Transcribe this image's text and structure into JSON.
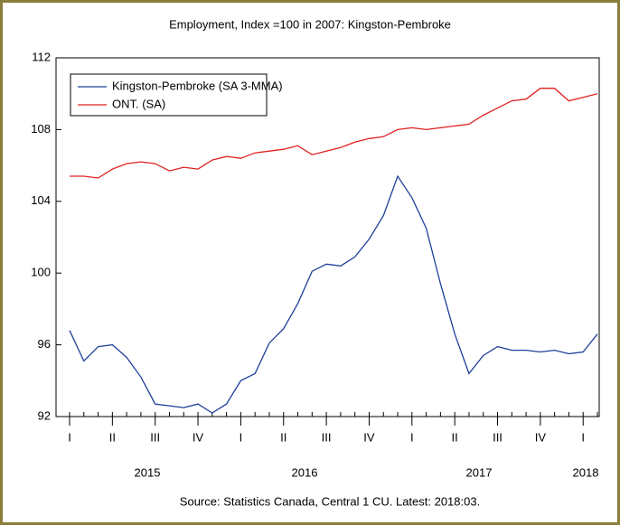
{
  "chart_data": {
    "type": "line",
    "title": "Employment, Index =100 in 2007: Kingston-Pembroke",
    "source": "Source: Statistics Canada, Central 1 CU. Latest: 2018:03.",
    "categories": [
      "I",
      null,
      null,
      "II",
      null,
      null,
      "III",
      null,
      null,
      "IV",
      null,
      null,
      "I",
      null,
      null,
      "II",
      null,
      null,
      "III",
      null,
      null,
      "IV",
      null,
      null,
      "I",
      null,
      null,
      "II",
      null,
      null,
      "III",
      null,
      null,
      "IV",
      null,
      null,
      "I",
      null
    ],
    "year_labels": [
      "2015",
      "2016",
      "2017",
      "2018"
    ],
    "series": [
      {
        "name": "Kingston-Pembroke (SA 3-MMA)",
        "color": "#1f3f9a",
        "values": [
          96.8,
          95.1,
          95.9,
          96.0,
          95.3,
          94.2,
          92.7,
          92.6,
          92.5,
          92.7,
          92.2,
          92.7,
          94.0,
          94.4,
          96.1,
          96.9,
          98.3,
          100.1,
          100.5,
          100.4,
          100.9,
          101.9,
          103.2,
          105.4,
          104.2,
          102.5,
          99.4,
          96.6,
          94.4,
          95.4,
          95.9,
          95.7,
          95.7,
          95.6,
          95.7,
          95.5,
          95.6,
          96.6
        ]
      },
      {
        "name": "ONT. (SA)",
        "color": "#e02020",
        "values": [
          105.4,
          105.4,
          105.3,
          105.8,
          106.1,
          106.2,
          106.1,
          105.7,
          105.9,
          105.8,
          106.3,
          106.5,
          106.4,
          106.7,
          106.8,
          106.9,
          107.1,
          106.6,
          106.8,
          107.0,
          107.3,
          107.5,
          107.6,
          108.0,
          108.1,
          108.0,
          108.1,
          108.2,
          108.3,
          108.8,
          109.2,
          109.6,
          109.7,
          110.3,
          110.3,
          109.6,
          109.8,
          110.0
        ]
      }
    ],
    "ylim": [
      92,
      112
    ],
    "yticks": [
      92,
      96,
      100,
      104,
      108,
      112
    ],
    "legend": "upper left"
  }
}
